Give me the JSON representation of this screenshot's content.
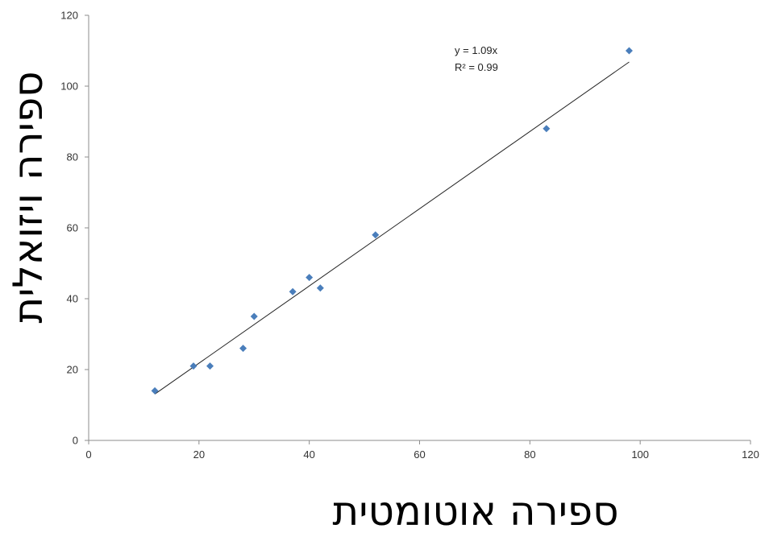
{
  "chart_data": {
    "type": "scatter",
    "xlabel": "ספירה אוטומטית",
    "ylabel": "ספירה ויזואלית",
    "xlim": [
      0,
      120
    ],
    "ylim": [
      0,
      120
    ],
    "x_ticks": [
      "0",
      "20",
      "40",
      "60",
      "80",
      "100",
      "120"
    ],
    "y_ticks": [
      "0",
      "20",
      "40",
      "60",
      "80",
      "100",
      "120"
    ],
    "grid": false,
    "marker_color": "#4a7ebb",
    "series": [
      {
        "x": [
          12,
          19,
          22,
          28,
          30,
          37,
          40,
          42,
          52,
          83,
          98
        ],
        "y": [
          14,
          21,
          21,
          26,
          35,
          42,
          46,
          43,
          58,
          88,
          110
        ]
      }
    ],
    "trendline": {
      "slope": 1.09,
      "x_range": [
        12,
        98
      ],
      "color": "#222222",
      "equation": "y = 1.09x",
      "r2_label": "R² = 0.99"
    }
  }
}
